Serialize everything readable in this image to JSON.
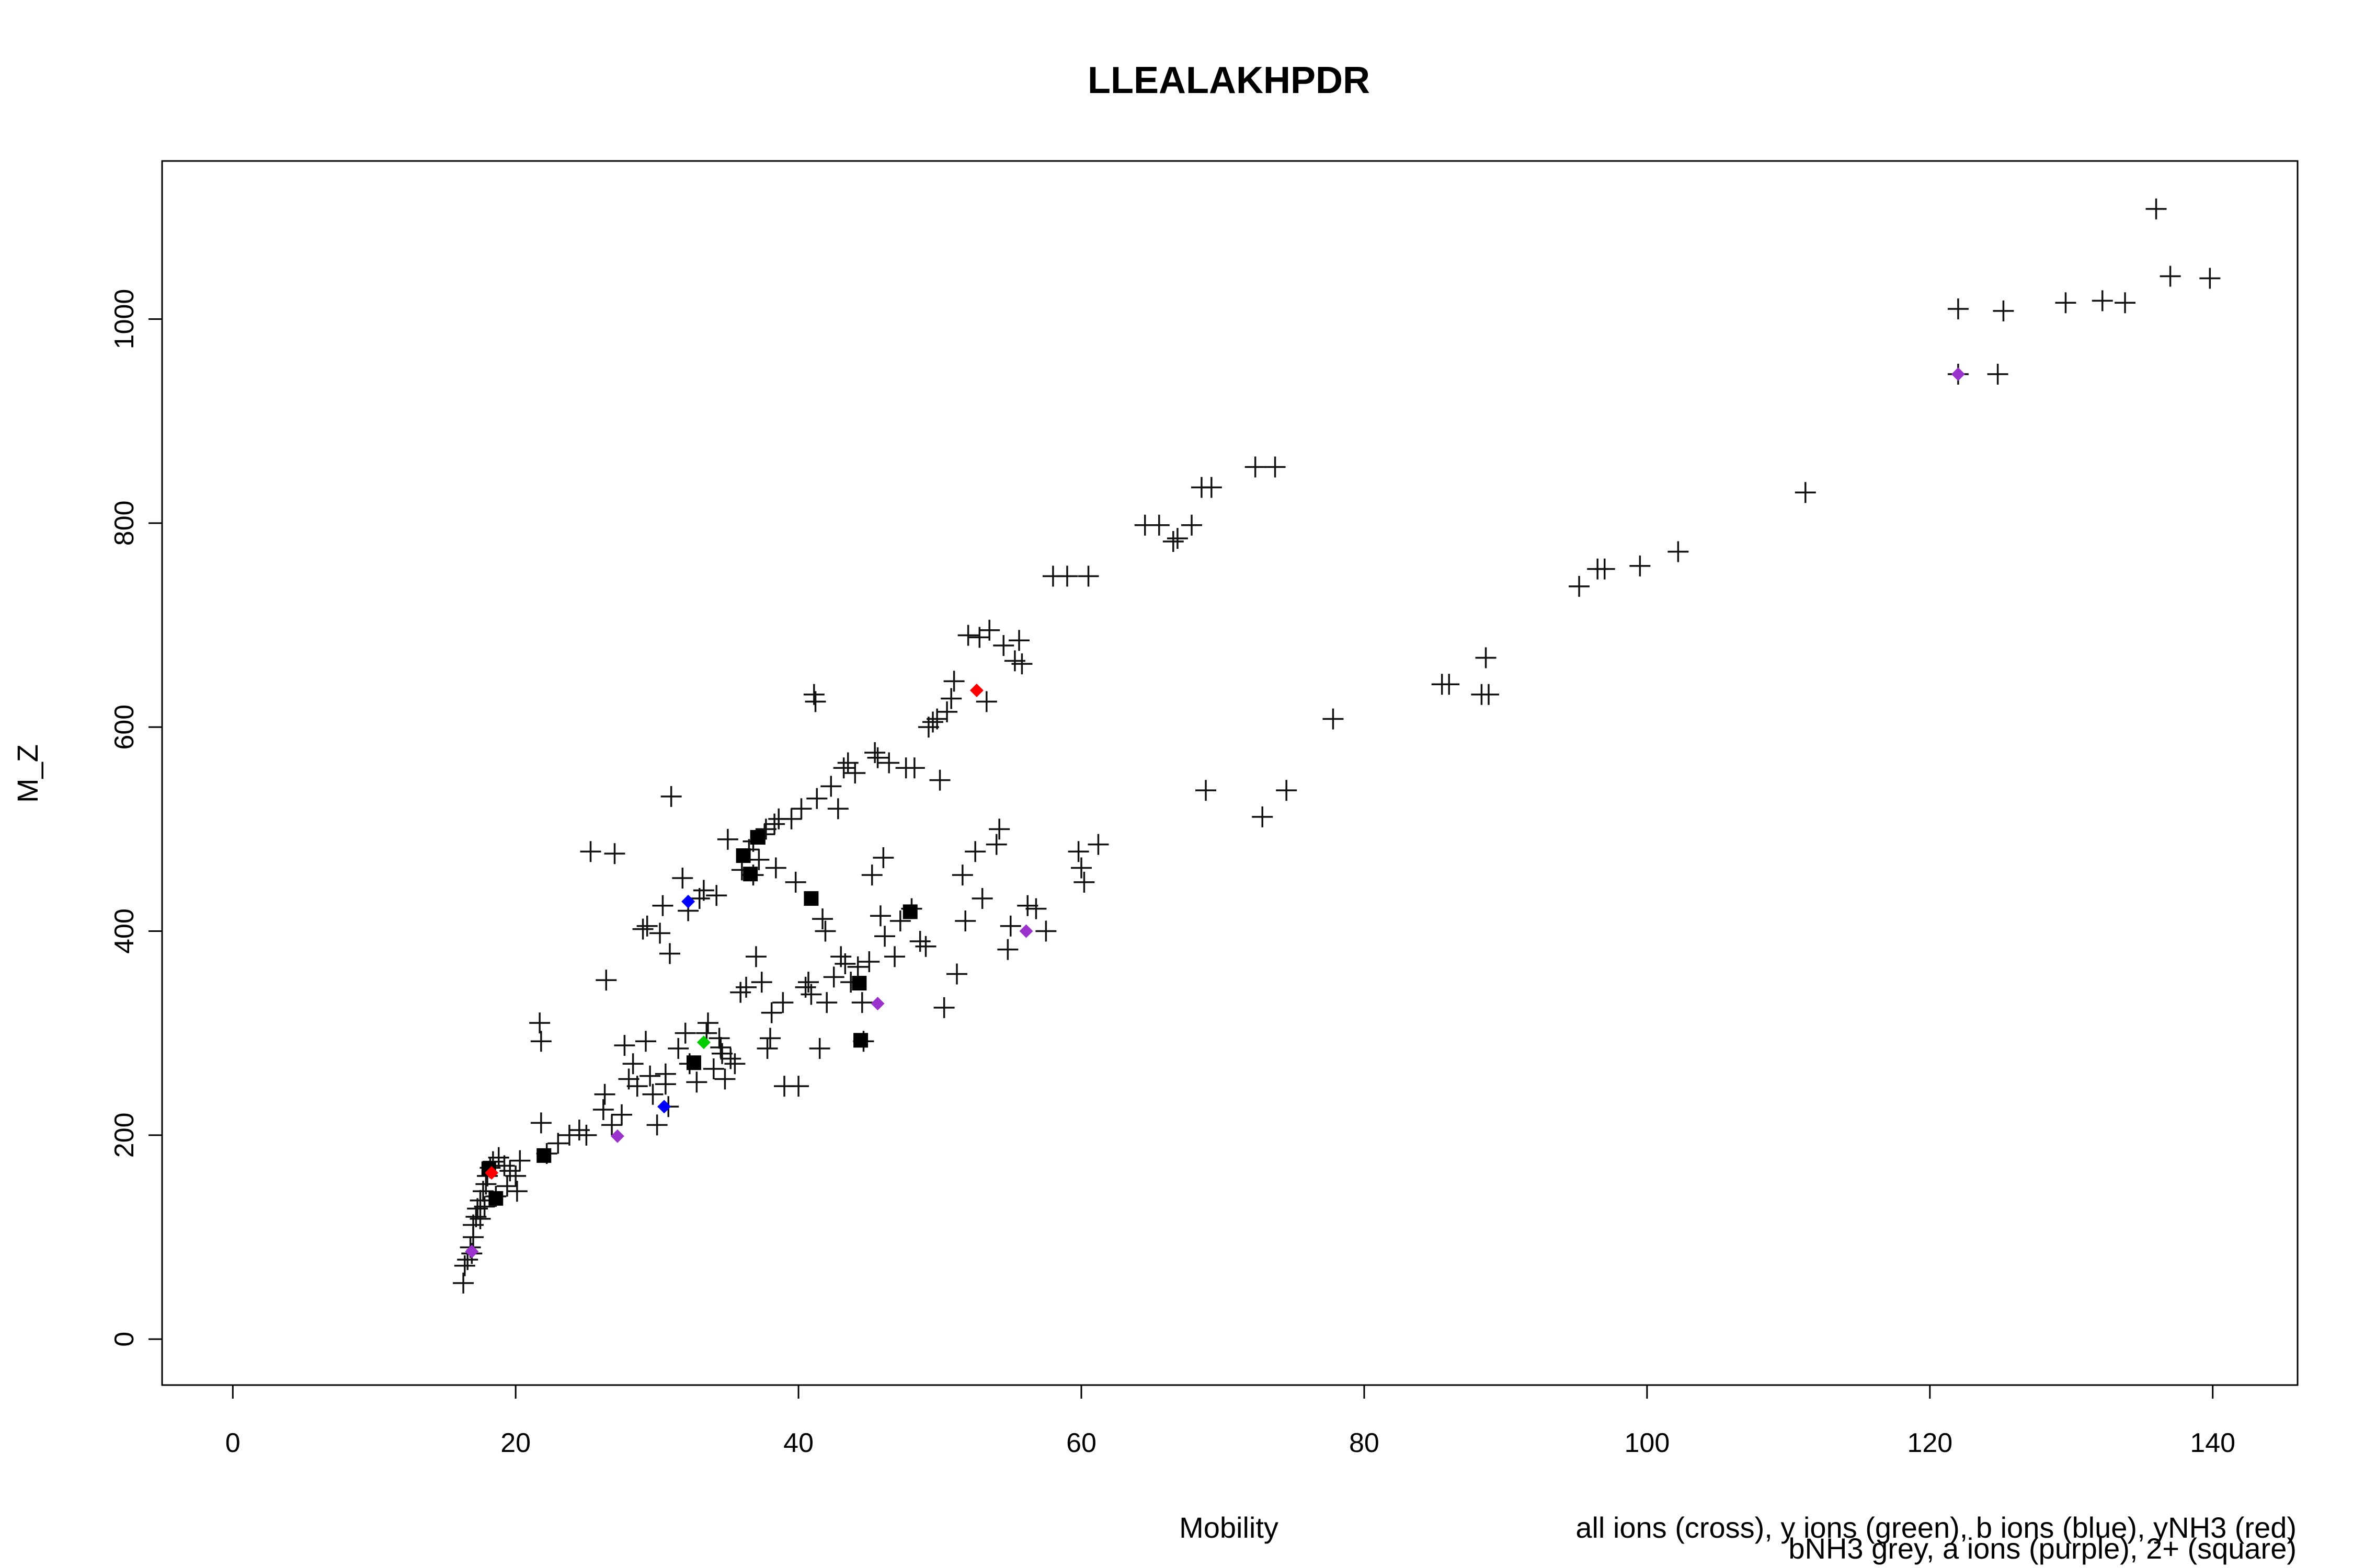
{
  "chart_data": {
    "type": "scatter",
    "title": "LLEALAKHPDR",
    "xlabel": "Mobility",
    "ylabel": "M_Z",
    "xlim": [
      -5,
      146
    ],
    "ylim": [
      -45,
      1155
    ],
    "xticks": [
      0,
      20,
      40,
      60,
      80,
      100,
      120,
      140
    ],
    "yticks": [
      0,
      200,
      400,
      600,
      800,
      1000
    ],
    "grid": false,
    "legend_lines": [
      "all ions (cross), y ions (green), b ions (blue), yNH3 (red)",
      "bNH3 grey, a ions (purple), 2+ (square)"
    ],
    "colors": {
      "cross": "#000000",
      "y_ions": "#00cc00",
      "b_ions": "#0000ff",
      "yNH3": "#ff0000",
      "a_ions": "#9933cc",
      "doubly_charged": "#000000"
    },
    "series": [
      {
        "name": "all ions (cross)",
        "marker": "cross",
        "points": [
          [
            16.3,
            55
          ],
          [
            16.4,
            72
          ],
          [
            16.6,
            78
          ],
          [
            16.8,
            90
          ],
          [
            17.0,
            100
          ],
          [
            17.0,
            112
          ],
          [
            17.2,
            120
          ],
          [
            17.3,
            128
          ],
          [
            17.5,
            136
          ],
          [
            17.7,
            145
          ],
          [
            17.9,
            152
          ],
          [
            18.0,
            160
          ],
          [
            18.2,
            168
          ],
          [
            18.4,
            174
          ],
          [
            18.8,
            178
          ],
          [
            19.2,
            170
          ],
          [
            19.6,
            165
          ],
          [
            20.0,
            160
          ],
          [
            20.1,
            145
          ],
          [
            20.3,
            175
          ],
          [
            17.5,
            118
          ],
          [
            17.8,
            130
          ],
          [
            18.6,
            140
          ],
          [
            19.4,
            150
          ],
          [
            16.9,
            84
          ],
          [
            21.7,
            310
          ],
          [
            21.8,
            292
          ],
          [
            21.8,
            212
          ],
          [
            22.2,
            182
          ],
          [
            23.0,
            192
          ],
          [
            23.8,
            200
          ],
          [
            24.5,
            205
          ],
          [
            25.0,
            200
          ],
          [
            25.3,
            478
          ],
          [
            26.2,
            225
          ],
          [
            26.3,
            240
          ],
          [
            26.4,
            352
          ],
          [
            26.8,
            210
          ],
          [
            27.0,
            476
          ],
          [
            27.5,
            220
          ],
          [
            27.7,
            288
          ],
          [
            28.0,
            255
          ],
          [
            28.3,
            270
          ],
          [
            28.6,
            248
          ],
          [
            29.0,
            402
          ],
          [
            29.2,
            292
          ],
          [
            29.3,
            405
          ],
          [
            29.5,
            258
          ],
          [
            29.7,
            240
          ],
          [
            30.0,
            210
          ],
          [
            30.2,
            398
          ],
          [
            30.4,
            425
          ],
          [
            30.6,
            260
          ],
          [
            30.8,
            228
          ],
          [
            30.9,
            378
          ],
          [
            31.0,
            532
          ],
          [
            31.5,
            285
          ],
          [
            31.8,
            452
          ],
          [
            32.0,
            300
          ],
          [
            32.2,
            420
          ],
          [
            32.3,
            270
          ],
          [
            32.8,
            252
          ],
          [
            33.0,
            432
          ],
          [
            33.3,
            440
          ],
          [
            33.5,
            300
          ],
          [
            33.6,
            310
          ],
          [
            34.0,
            265
          ],
          [
            34.2,
            435
          ],
          [
            34.4,
            295
          ],
          [
            34.6,
            280
          ],
          [
            34.8,
            255
          ],
          [
            35.0,
            490
          ],
          [
            35.2,
            275
          ],
          [
            35.5,
            270
          ],
          [
            35.9,
            340
          ],
          [
            36.0,
            460
          ],
          [
            36.3,
            345
          ],
          [
            36.5,
            480
          ],
          [
            36.8,
            488
          ],
          [
            37.0,
            375
          ],
          [
            37.2,
            470
          ],
          [
            37.4,
            350
          ],
          [
            37.6,
            495
          ],
          [
            37.8,
            285
          ],
          [
            38.0,
            295
          ],
          [
            38.1,
            320
          ],
          [
            38.3,
            505
          ],
          [
            38.4,
            462
          ],
          [
            38.6,
            510
          ],
          [
            38.9,
            330
          ],
          [
            39.0,
            248
          ],
          [
            39.5,
            510
          ],
          [
            39.8,
            448
          ],
          [
            40.0,
            248
          ],
          [
            40.2,
            520
          ],
          [
            40.5,
            345
          ],
          [
            40.7,
            350
          ],
          [
            40.9,
            338
          ],
          [
            41.1,
            632
          ],
          [
            41.2,
            625
          ],
          [
            41.3,
            530
          ],
          [
            41.5,
            285
          ],
          [
            41.7,
            412
          ],
          [
            41.9,
            400
          ],
          [
            42.0,
            330
          ],
          [
            42.3,
            542
          ],
          [
            42.5,
            355
          ],
          [
            42.8,
            520
          ],
          [
            43.0,
            375
          ],
          [
            43.2,
            560
          ],
          [
            43.5,
            565
          ],
          [
            43.7,
            350
          ],
          [
            44.0,
            555
          ],
          [
            44.2,
            365
          ],
          [
            44.5,
            330
          ],
          [
            44.6,
            292
          ],
          [
            45.0,
            370
          ],
          [
            45.2,
            455
          ],
          [
            45.4,
            575
          ],
          [
            45.6,
            570
          ],
          [
            45.8,
            415
          ],
          [
            46.0,
            472
          ],
          [
            46.1,
            395
          ],
          [
            46.4,
            565
          ],
          [
            46.8,
            375
          ],
          [
            47.2,
            410
          ],
          [
            47.6,
            560
          ],
          [
            48.0,
            422
          ],
          [
            48.2,
            560
          ],
          [
            48.6,
            390
          ],
          [
            49.0,
            385
          ],
          [
            49.2,
            600
          ],
          [
            49.5,
            605
          ],
          [
            49.8,
            608
          ],
          [
            50.0,
            548
          ],
          [
            50.3,
            325
          ],
          [
            50.5,
            615
          ],
          [
            50.8,
            628
          ],
          [
            51.0,
            645
          ],
          [
            51.2,
            358
          ],
          [
            51.6,
            455
          ],
          [
            51.8,
            410
          ],
          [
            52.0,
            690
          ],
          [
            52.5,
            478
          ],
          [
            52.8,
            688
          ],
          [
            53.0,
            432
          ],
          [
            53.3,
            625
          ],
          [
            53.5,
            695
          ],
          [
            54.0,
            485
          ],
          [
            54.2,
            500
          ],
          [
            54.5,
            680
          ],
          [
            54.8,
            382
          ],
          [
            55.0,
            405
          ],
          [
            55.3,
            665
          ],
          [
            55.6,
            685
          ],
          [
            55.8,
            662
          ],
          [
            56.2,
            425
          ],
          [
            56.8,
            422
          ],
          [
            57.5,
            400
          ],
          [
            58.0,
            748
          ],
          [
            59.0,
            748
          ],
          [
            59.8,
            478
          ],
          [
            60.0,
            462
          ],
          [
            60.2,
            448
          ],
          [
            60.5,
            748
          ],
          [
            61.2,
            485
          ],
          [
            64.5,
            798
          ],
          [
            65.5,
            798
          ],
          [
            66.5,
            782
          ],
          [
            67.8,
            798
          ],
          [
            68.5,
            835
          ],
          [
            68.8,
            538
          ],
          [
            69.2,
            835
          ],
          [
            72.3,
            855
          ],
          [
            72.8,
            512
          ],
          [
            73.7,
            855
          ],
          [
            74.5,
            538
          ],
          [
            77.8,
            608
          ],
          [
            85.5,
            642
          ],
          [
            86.0,
            642
          ],
          [
            88.3,
            632
          ],
          [
            88.6,
            668
          ],
          [
            88.8,
            632
          ],
          [
            95.2,
            738
          ],
          [
            96.5,
            755
          ],
          [
            97.0,
            755
          ],
          [
            99.5,
            758
          ],
          [
            102.2,
            772
          ],
          [
            111.2,
            830
          ],
          [
            122.0,
            1010
          ],
          [
            124.8,
            946
          ],
          [
            125.2,
            1008
          ],
          [
            129.6,
            1016
          ],
          [
            132.2,
            1018
          ],
          [
            133.8,
            1016
          ],
          [
            136.0,
            1108
          ],
          [
            137.0,
            1042
          ],
          [
            139.8,
            1040
          ],
          [
            122.0,
            946
          ],
          [
            66.8,
            785
          ],
          [
            43.3,
            368
          ],
          [
            37.7,
            500
          ],
          [
            36.8,
            455
          ],
          [
            30.6,
            250
          ],
          [
            34.5,
            286
          ]
        ]
      },
      {
        "name": "y ions (green)",
        "marker": "diamond",
        "color": "#00cc00",
        "points": [
          [
            33.3,
            291
          ]
        ]
      },
      {
        "name": "b ions (blue)",
        "marker": "diamond",
        "color": "#0000ff",
        "points": [
          [
            32.2,
            429
          ],
          [
            30.5,
            228
          ]
        ]
      },
      {
        "name": "yNH3 (red)",
        "marker": "diamond",
        "color": "#ff0000",
        "points": [
          [
            52.6,
            636
          ],
          [
            18.3,
            163
          ]
        ]
      },
      {
        "name": "a ions (purple)",
        "marker": "diamond",
        "color": "#9933cc",
        "points": [
          [
            27.2,
            199
          ],
          [
            45.6,
            329
          ],
          [
            56.1,
            400
          ],
          [
            16.9,
            86
          ],
          [
            122.0,
            946
          ]
        ]
      },
      {
        "name": "2+ (square)",
        "marker": "square",
        "points": [
          [
            18.1,
            167
          ],
          [
            18.6,
            138
          ],
          [
            22.0,
            180
          ],
          [
            32.6,
            271
          ],
          [
            36.1,
            474
          ],
          [
            36.6,
            456
          ],
          [
            37.1,
            492
          ],
          [
            40.9,
            432
          ],
          [
            44.4,
            293
          ],
          [
            44.3,
            349
          ],
          [
            47.9,
            419
          ]
        ]
      }
    ]
  }
}
